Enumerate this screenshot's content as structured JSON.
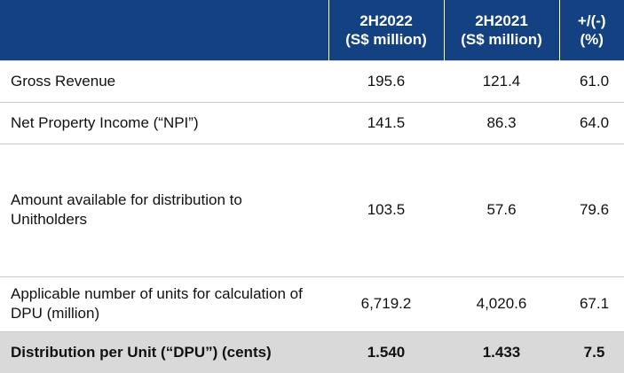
{
  "header": {
    "label_col": "",
    "col_a": {
      "line1": "2H2022",
      "line2": "(S$ million)"
    },
    "col_b": {
      "line1": "2H2021",
      "line2": "(S$ million)"
    },
    "col_c": {
      "line1": "+/(-)",
      "line2": "(%)"
    }
  },
  "rows": [
    {
      "label": "Gross Revenue",
      "a": "195.6",
      "b": "121.4",
      "c": "61.0"
    },
    {
      "label": "Net Property Income (“NPI”)",
      "a": "141.5",
      "b": "86.3",
      "c": "64.0"
    },
    {
      "label": "Amount available for distribution to Unitholders",
      "a": "103.5",
      "b": "57.6",
      "c": "79.6"
    },
    {
      "label": "Applicable number of units for calculation of DPU (million)",
      "a": "6,719.2",
      "b": "4,020.6",
      "c": "67.1"
    },
    {
      "label": "Distribution per Unit (“DPU”) (cents)",
      "a": "1.540",
      "b": "1.433",
      "c": "7.5"
    }
  ],
  "colors": {
    "header_bg": "#134181",
    "header_text": "#ffffff",
    "total_row_bg": "#d9d9d9"
  }
}
